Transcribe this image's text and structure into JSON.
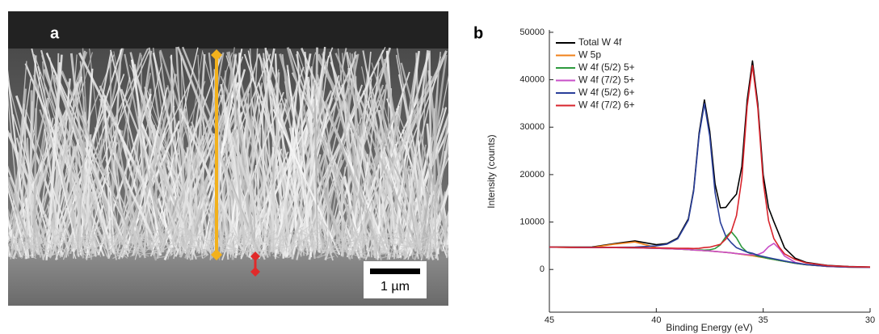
{
  "panel_a": {
    "label": "a",
    "scale_bar": "1 µm"
  },
  "chart_data": {
    "type": "line",
    "label": "b",
    "x_label": "Binding Energy (eV)",
    "y_label": "Intensity (counts)",
    "x": [
      45,
      44,
      43,
      42,
      41,
      40,
      39.5,
      39,
      38.5,
      38.25,
      38,
      37.75,
      37.5,
      37.25,
      37,
      36.75,
      36.5,
      36.25,
      36,
      35.75,
      35.5,
      35.25,
      35,
      34.75,
      34.5,
      34.25,
      34,
      33.5,
      33,
      32,
      31,
      30
    ],
    "xlim": [
      45,
      30
    ],
    "xticks": [
      45,
      40,
      35,
      30
    ],
    "ylim": [
      -9000,
      50500
    ],
    "yticks": [
      0,
      10000,
      20000,
      30000,
      40000,
      50000
    ],
    "legend": "upper left",
    "series": [
      {
        "name": "Total W 4f",
        "color": "#000000",
        "values": [
          4740,
          4710,
          4735,
          5425,
          6020,
          5220,
          5450,
          6640,
          10650,
          16820,
          28710,
          35750,
          29150,
          18000,
          13000,
          13100,
          14570,
          15890,
          21680,
          35660,
          43970,
          34880,
          19940,
          12990,
          10060,
          7330,
          4530,
          2360,
          1500,
          850,
          610,
          520
        ]
      },
      {
        "color": "#b09a7a",
        "values": [
          4700,
          4650,
          4600,
          4600,
          4550,
          4450,
          4400,
          4300,
          4200,
          4100,
          4050,
          3950,
          3900,
          3800,
          3700,
          3600,
          3500,
          3350,
          3200,
          3050,
          2900,
          2700,
          2500,
          2300,
          2100,
          1900,
          1700,
          1300,
          1000,
          650,
          500,
          450
        ]
      },
      {
        "name": "W 5p",
        "color": "#f0801a",
        "values": [
          4700,
          4650,
          4650,
          5300,
          5800,
          4600,
          4400,
          4300,
          4200,
          4100,
          4050,
          3950,
          3900,
          3800,
          3700,
          3600,
          3500,
          3350,
          3200,
          3050,
          2900,
          2700,
          2500,
          2300,
          2100,
          1900,
          1700,
          1300,
          1000,
          650,
          500,
          450
        ]
      },
      {
        "name": "W 4f (5/2) 5+",
        "color": "#2e9a3e",
        "values": [
          4700,
          4650,
          4600,
          4600,
          4550,
          4450,
          4400,
          4300,
          4200,
          4100,
          4110,
          4070,
          4150,
          4400,
          5200,
          6900,
          8000,
          6650,
          4700,
          3650,
          3150,
          2820,
          2560,
          2300,
          2100,
          1900,
          1700,
          1300,
          1000,
          650,
          500,
          450
        ]
      },
      {
        "name": "W 4f (7/2) 5+",
        "color": "#c84fc8",
        "values": [
          4700,
          4650,
          4600,
          4600,
          4550,
          4450,
          4400,
          4300,
          4200,
          4100,
          4050,
          3950,
          3900,
          3800,
          3700,
          3600,
          3500,
          3350,
          3250,
          3140,
          3090,
          3150,
          3630,
          4800,
          5500,
          4400,
          2830,
          1490,
          1050,
          650,
          500,
          450
        ]
      },
      {
        "name": "W 4f (5/2) 6+",
        "color": "#2a3f9a",
        "values": [
          4720,
          4680,
          4650,
          4680,
          4710,
          4980,
          5330,
          6470,
          10400,
          16500,
          28250,
          34950,
          28100,
          16200,
          9900,
          7000,
          5670,
          4590,
          4130,
          3670,
          3430,
          3010,
          2750,
          2490,
          2260,
          2030,
          1800,
          1370,
          1050,
          680,
          520,
          460
        ]
      },
      {
        "name": "W 4f (7/2) 6+",
        "color": "#d8242c",
        "values": [
          4720,
          4680,
          4640,
          4650,
          4610,
          4540,
          4520,
          4470,
          4450,
          4420,
          4450,
          4630,
          4700,
          5000,
          5300,
          6400,
          7900,
          11350,
          19200,
          34350,
          43000,
          34000,
          18500,
          10300,
          6500,
          4700,
          3300,
          2100,
          1400,
          820,
          590,
          510
        ]
      }
    ]
  }
}
